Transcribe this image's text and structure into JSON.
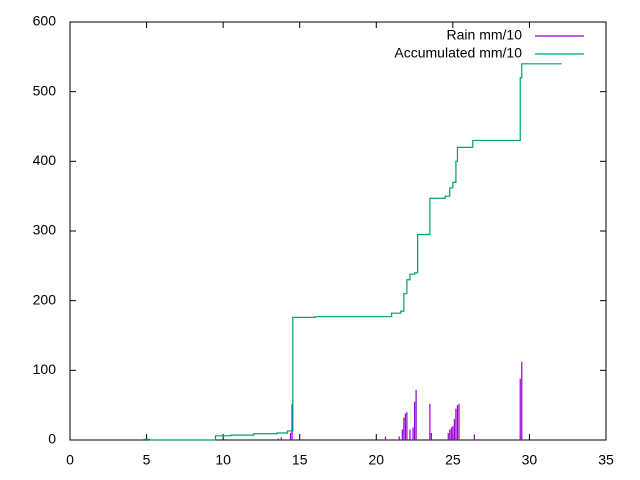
{
  "chart_data": {
    "type": "line",
    "xlim": [
      0,
      35
    ],
    "xticks": [
      0,
      5,
      10,
      15,
      20,
      25,
      30,
      35
    ],
    "ylim": [
      0,
      600
    ],
    "yticks": [
      0,
      100,
      200,
      300,
      400,
      500,
      600
    ],
    "legend": "top-right",
    "series": [
      {
        "name": "Rain mm/10",
        "color": "#9400d3",
        "style": "impulses",
        "x": [
          13.6,
          13.8,
          14.4,
          14.5,
          20.6,
          21.5,
          21.7,
          21.8,
          21.9,
          22.0,
          22.2,
          22.4,
          22.5,
          22.6,
          23.5,
          23.6,
          24.7,
          24.8,
          24.9,
          25.0,
          25.1,
          25.2,
          25.3,
          25.4,
          26.4,
          29.4,
          29.5
        ],
        "values": [
          2,
          4,
          10,
          52,
          5,
          5,
          15,
          32,
          38,
          40,
          15,
          18,
          55,
          72,
          52,
          10,
          10,
          15,
          18,
          20,
          30,
          45,
          50,
          52,
          8,
          88,
          112
        ]
      },
      {
        "name": "Accumulated mm/10",
        "color": "#009e73",
        "style": "steps",
        "x": [
          4.8,
          5.2,
          9.5,
          10.5,
          12.0,
          13.5,
          14.2,
          14.55,
          16.0,
          21.0,
          21.6,
          21.8,
          22.0,
          22.2,
          22.5,
          22.7,
          23.5,
          24.5,
          24.8,
          25.0,
          25.2,
          25.3,
          26.3,
          29.4,
          29.5,
          32.1
        ],
        "values": [
          1,
          0,
          6,
          7,
          9,
          10,
          13,
          176,
          177,
          182,
          185,
          210,
          230,
          238,
          240,
          295,
          347,
          350,
          362,
          370,
          400,
          420,
          430,
          520,
          540,
          540
        ]
      }
    ]
  }
}
